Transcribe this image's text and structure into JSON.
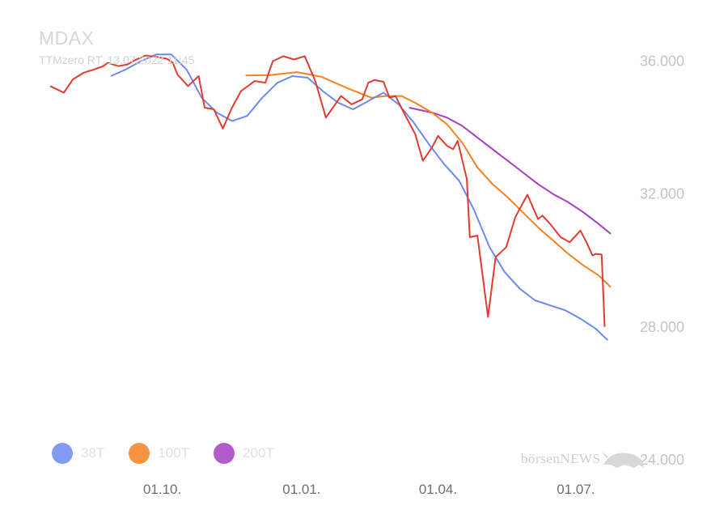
{
  "title": "MDAX",
  "subtitle": "TTMzero RT, 13.07.2022 11:45",
  "brand": {
    "text": "börsenNEWS",
    "logo": "bull-icon"
  },
  "chart_data": {
    "type": "line",
    "title": "MDAX",
    "ylim": [
      24000,
      36500
    ],
    "y_ticks": [
      {
        "value": 36000,
        "label": "36.000"
      },
      {
        "value": 32000,
        "label": "32.000"
      },
      {
        "value": 28000,
        "label": "28.000"
      },
      {
        "value": 24000,
        "label": "24.000"
      }
    ],
    "x_ticks": [
      {
        "value": "2021-10-01",
        "label": "01.10."
      },
      {
        "value": "2022-01-01",
        "label": "01.01."
      },
      {
        "value": "2022-04-01",
        "label": "01.04."
      },
      {
        "value": "2022-07-01",
        "label": "01.07."
      }
    ],
    "xlim": [
      "2021-07-19",
      "2022-07-24"
    ],
    "grid": false,
    "legend": "bottom-left",
    "series": [
      {
        "name": "MDAX",
        "color": "#e03c31",
        "legend": false,
        "points": [
          [
            "2021-07-19",
            35250
          ],
          [
            "2021-07-28",
            35050
          ],
          [
            "2021-08-03",
            35450
          ],
          [
            "2021-08-10",
            35650
          ],
          [
            "2021-08-17",
            35750
          ],
          [
            "2021-08-23",
            35850
          ],
          [
            "2021-08-26",
            35950
          ],
          [
            "2021-09-02",
            35850
          ],
          [
            "2021-09-08",
            35900
          ],
          [
            "2021-09-13",
            36030
          ],
          [
            "2021-09-20",
            36170
          ],
          [
            "2021-09-27",
            36130
          ],
          [
            "2021-10-04",
            36070
          ],
          [
            "2021-10-08",
            35950
          ],
          [
            "2021-10-11",
            35600
          ],
          [
            "2021-10-18",
            35250
          ],
          [
            "2021-10-25",
            35550
          ],
          [
            "2021-10-29",
            34600
          ],
          [
            "2021-11-04",
            34550
          ],
          [
            "2021-11-10",
            33970
          ],
          [
            "2021-11-16",
            34600
          ],
          [
            "2021-11-22",
            35100
          ],
          [
            "2021-12-01",
            35400
          ],
          [
            "2021-12-08",
            35350
          ],
          [
            "2021-12-13",
            36000
          ],
          [
            "2021-12-20",
            36150
          ],
          [
            "2021-12-27",
            36050
          ],
          [
            "2022-01-03",
            36150
          ],
          [
            "2022-01-10",
            35400
          ],
          [
            "2022-01-17",
            34300
          ],
          [
            "2022-01-27",
            34950
          ],
          [
            "2022-02-03",
            34700
          ],
          [
            "2022-02-10",
            34850
          ],
          [
            "2022-02-14",
            35350
          ],
          [
            "2022-02-18",
            35430
          ],
          [
            "2022-02-24",
            35380
          ],
          [
            "2022-02-28",
            34900
          ],
          [
            "2022-03-04",
            34950
          ],
          [
            "2022-03-10",
            34400
          ],
          [
            "2022-03-17",
            33800
          ],
          [
            "2022-03-22",
            33000
          ],
          [
            "2022-03-28",
            33400
          ],
          [
            "2022-04-01",
            33750
          ],
          [
            "2022-04-07",
            33450
          ],
          [
            "2022-04-11",
            33350
          ],
          [
            "2022-04-14",
            33600
          ],
          [
            "2022-04-20",
            32450
          ],
          [
            "2022-04-22",
            30700
          ],
          [
            "2022-04-27",
            30750
          ],
          [
            "2022-05-04",
            28300
          ],
          [
            "2022-05-09",
            30100
          ],
          [
            "2022-05-16",
            30400
          ],
          [
            "2022-05-22",
            31300
          ],
          [
            "2022-05-30",
            31980
          ],
          [
            "2022-06-06",
            31250
          ],
          [
            "2022-06-09",
            31350
          ],
          [
            "2022-06-14",
            31100
          ],
          [
            "2022-06-21",
            30700
          ],
          [
            "2022-06-27",
            30550
          ],
          [
            "2022-07-04",
            30900
          ],
          [
            "2022-07-08",
            30550
          ],
          [
            "2022-07-12",
            30150
          ],
          [
            "2022-07-14",
            30200
          ],
          [
            "2022-07-18",
            30180
          ],
          [
            "2022-07-20",
            28000
          ]
        ]
      },
      {
        "name": "38T",
        "color": "#6b8af0",
        "legend": true,
        "points": [
          [
            "2021-08-28",
            35550
          ],
          [
            "2021-09-07",
            35750
          ],
          [
            "2021-09-17",
            36000
          ],
          [
            "2021-09-27",
            36200
          ],
          [
            "2021-10-07",
            36200
          ],
          [
            "2021-10-17",
            35750
          ],
          [
            "2021-10-27",
            34900
          ],
          [
            "2021-11-06",
            34450
          ],
          [
            "2021-11-16",
            34200
          ],
          [
            "2021-11-26",
            34350
          ],
          [
            "2021-12-06",
            34900
          ],
          [
            "2021-12-16",
            35350
          ],
          [
            "2021-12-26",
            35550
          ],
          [
            "2022-01-05",
            35500
          ],
          [
            "2022-01-15",
            35100
          ],
          [
            "2022-01-25",
            34750
          ],
          [
            "2022-02-04",
            34550
          ],
          [
            "2022-02-14",
            34800
          ],
          [
            "2022-02-24",
            35050
          ],
          [
            "2022-03-06",
            34700
          ],
          [
            "2022-03-16",
            34150
          ],
          [
            "2022-03-26",
            33500
          ],
          [
            "2022-04-05",
            32900
          ],
          [
            "2022-04-15",
            32400
          ],
          [
            "2022-04-25",
            31500
          ],
          [
            "2022-05-05",
            30400
          ],
          [
            "2022-05-15",
            29650
          ],
          [
            "2022-05-25",
            29150
          ],
          [
            "2022-06-04",
            28800
          ],
          [
            "2022-06-14",
            28650
          ],
          [
            "2022-06-24",
            28500
          ],
          [
            "2022-07-04",
            28250
          ],
          [
            "2022-07-14",
            27950
          ],
          [
            "2022-07-22",
            27600
          ]
        ]
      },
      {
        "name": "100T",
        "color": "#f38321",
        "legend": true,
        "points": [
          [
            "2021-11-25",
            35570
          ],
          [
            "2021-12-11",
            35580
          ],
          [
            "2021-12-29",
            35670
          ],
          [
            "2022-01-14",
            35530
          ],
          [
            "2022-01-31",
            35190
          ],
          [
            "2022-02-16",
            34900
          ],
          [
            "2022-02-25",
            34950
          ],
          [
            "2022-03-08",
            34950
          ],
          [
            "2022-03-18",
            34720
          ],
          [
            "2022-03-28",
            34450
          ],
          [
            "2022-04-07",
            34100
          ],
          [
            "2022-04-17",
            33550
          ],
          [
            "2022-04-27",
            32800
          ],
          [
            "2022-05-07",
            32300
          ],
          [
            "2022-05-17",
            31900
          ],
          [
            "2022-05-27",
            31450
          ],
          [
            "2022-06-06",
            31000
          ],
          [
            "2022-06-16",
            30600
          ],
          [
            "2022-06-26",
            30200
          ],
          [
            "2022-07-06",
            29850
          ],
          [
            "2022-07-16",
            29550
          ],
          [
            "2022-07-24",
            29200
          ]
        ]
      },
      {
        "name": "200T",
        "color": "#a43fc0",
        "legend": true,
        "points": [
          [
            "2022-03-13",
            34600
          ],
          [
            "2022-03-28",
            34450
          ],
          [
            "2022-04-07",
            34300
          ],
          [
            "2022-04-17",
            34050
          ],
          [
            "2022-04-27",
            33700
          ],
          [
            "2022-05-07",
            33350
          ],
          [
            "2022-05-17",
            33000
          ],
          [
            "2022-05-27",
            32650
          ],
          [
            "2022-06-06",
            32300
          ],
          [
            "2022-06-16",
            32000
          ],
          [
            "2022-06-26",
            31750
          ],
          [
            "2022-07-06",
            31450
          ],
          [
            "2022-07-16",
            31100
          ],
          [
            "2022-07-24",
            30800
          ]
        ]
      }
    ]
  }
}
